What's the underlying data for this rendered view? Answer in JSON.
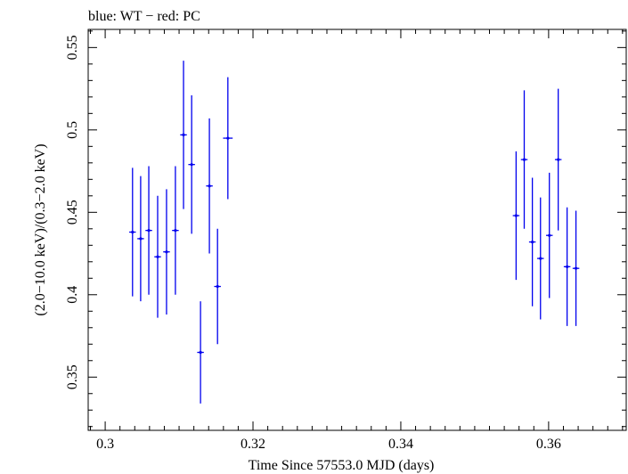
{
  "chart_data": {
    "type": "scatter",
    "title": "blue: WT − red: PC",
    "xlabel": "Time Since 57553.0 MJD (days)",
    "ylabel": "(2.0−10.0 keV)/(0.3−2.0 keV)",
    "xlim": [
      0.2977,
      0.3705
    ],
    "ylim": [
      0.3177,
      0.561
    ],
    "grid": false,
    "x_ticks": [
      0.3,
      0.32,
      0.34,
      0.36
    ],
    "x_tick_labels": [
      "0.3",
      "0.32",
      "0.34",
      "0.36"
    ],
    "y_ticks": [
      0.35,
      0.4,
      0.45,
      0.5,
      0.55
    ],
    "y_tick_labels": [
      "0.35",
      "0.4",
      "0.45",
      "0.5",
      "0.55"
    ],
    "series": [
      {
        "name": "WT",
        "color": "#0000ee",
        "points": [
          {
            "x": 0.3037,
            "y": 0.438,
            "yerr": 0.039,
            "xerr": 0.00045
          },
          {
            "x": 0.3048,
            "y": 0.434,
            "yerr": 0.038,
            "xerr": 0.00045
          },
          {
            "x": 0.3059,
            "y": 0.439,
            "yerr": 0.039,
            "xerr": 0.00045
          },
          {
            "x": 0.3071,
            "y": 0.423,
            "yerr": 0.037,
            "xerr": 0.00045
          },
          {
            "x": 0.3083,
            "y": 0.426,
            "yerr": 0.038,
            "xerr": 0.00045
          },
          {
            "x": 0.3095,
            "y": 0.439,
            "yerr": 0.039,
            "xerr": 0.00045
          },
          {
            "x": 0.3106,
            "y": 0.497,
            "yerr": 0.045,
            "xerr": 0.00045
          },
          {
            "x": 0.3117,
            "y": 0.479,
            "yerr": 0.042,
            "xerr": 0.00045
          },
          {
            "x": 0.3129,
            "y": 0.365,
            "yerr": 0.031,
            "xerr": 0.00045
          },
          {
            "x": 0.3141,
            "y": 0.466,
            "yerr": 0.041,
            "xerr": 0.00045
          },
          {
            "x": 0.3152,
            "y": 0.405,
            "yerr": 0.035,
            "xerr": 0.00045
          },
          {
            "x": 0.3166,
            "y": 0.495,
            "yerr": 0.037,
            "xerr": 0.00065
          },
          {
            "x": 0.3556,
            "y": 0.448,
            "yerr": 0.039,
            "xerr": 0.00045
          },
          {
            "x": 0.3567,
            "y": 0.482,
            "yerr": 0.042,
            "xerr": 0.00045
          },
          {
            "x": 0.3578,
            "y": 0.432,
            "yerr": 0.039,
            "xerr": 0.00045
          },
          {
            "x": 0.3589,
            "y": 0.422,
            "yerr": 0.037,
            "xerr": 0.00045
          },
          {
            "x": 0.3601,
            "y": 0.436,
            "yerr": 0.038,
            "xerr": 0.00045
          },
          {
            "x": 0.3613,
            "y": 0.482,
            "yerr": 0.043,
            "xerr": 0.00045
          },
          {
            "x": 0.3625,
            "y": 0.417,
            "yerr": 0.036,
            "xerr": 0.00045
          },
          {
            "x": 0.3637,
            "y": 0.416,
            "yerr": 0.035,
            "xerr": 0.00045
          }
        ]
      }
    ]
  }
}
